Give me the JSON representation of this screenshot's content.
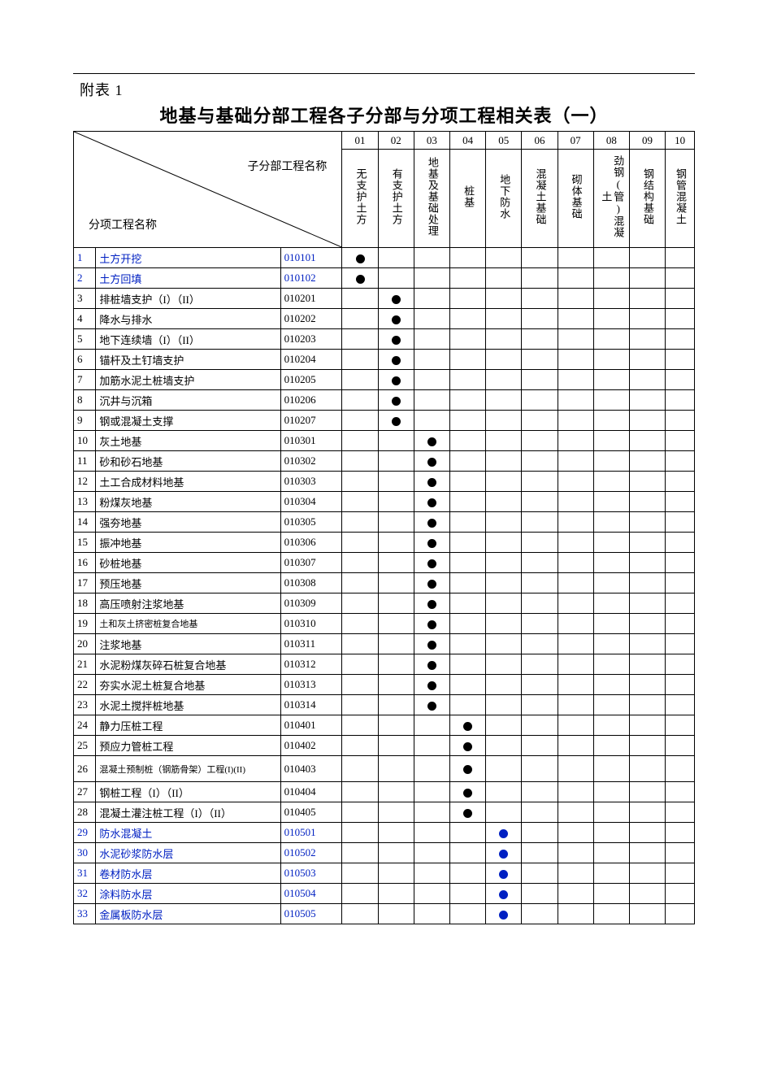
{
  "pre_title": "附表 1",
  "title": "地基与基础分部工程各子分部与分项工程相关表（一）",
  "diag_labels": {
    "top_right": "子分部工程名称",
    "bottom_left": "分项工程名称"
  },
  "columns": [
    {
      "num": "01",
      "label": "无支护土方"
    },
    {
      "num": "02",
      "label": "有支护土方"
    },
    {
      "num": "03",
      "label": "地基及基础处理"
    },
    {
      "num": "04",
      "label": "桩基"
    },
    {
      "num": "05",
      "label": "地下防水"
    },
    {
      "num": "06",
      "label": "混凝土基础"
    },
    {
      "num": "07",
      "label": "砌体基础"
    },
    {
      "num": "08",
      "label": "劲钢(管)混凝土"
    },
    {
      "num": "09",
      "label": "钢结构基础"
    },
    {
      "num": "10",
      "label": "钢管混凝土"
    }
  ],
  "rows": [
    {
      "idx": "1",
      "name": "土方开挖",
      "code": "010101",
      "mark_col": 0,
      "link": true,
      "dot": "black"
    },
    {
      "idx": "2",
      "name": "土方回填",
      "code": "010102",
      "mark_col": 0,
      "link": true,
      "dot": "black"
    },
    {
      "idx": "3",
      "name": "排桩墙支护（I）（II）",
      "code": "010201",
      "mark_col": 1,
      "link": false,
      "dot": "black"
    },
    {
      "idx": "4",
      "name": "降水与排水",
      "code": "010202",
      "mark_col": 1,
      "link": false,
      "dot": "black"
    },
    {
      "idx": "5",
      "name": "地下连续墙（I）（II）",
      "code": "010203",
      "mark_col": 1,
      "link": false,
      "dot": "black"
    },
    {
      "idx": "6",
      "name": "锚杆及土钉墙支护",
      "code": "010204",
      "mark_col": 1,
      "link": false,
      "dot": "black"
    },
    {
      "idx": "7",
      "name": "加筋水泥土桩墙支护",
      "code": "010205",
      "mark_col": 1,
      "link": false,
      "dot": "black"
    },
    {
      "idx": "8",
      "name": "沉井与沉箱",
      "code": "010206",
      "mark_col": 1,
      "link": false,
      "dot": "black"
    },
    {
      "idx": "9",
      "name": "钢或混凝土支撑",
      "code": "010207",
      "mark_col": 1,
      "link": false,
      "dot": "black"
    },
    {
      "idx": "10",
      "name": "灰土地基",
      "code": "010301",
      "mark_col": 2,
      "link": false,
      "dot": "black"
    },
    {
      "idx": "11",
      "name": "砂和砂石地基",
      "code": "010302",
      "mark_col": 2,
      "link": false,
      "dot": "black"
    },
    {
      "idx": "12",
      "name": "土工合成材料地基",
      "code": "010303",
      "mark_col": 2,
      "link": false,
      "dot": "black"
    },
    {
      "idx": "13",
      "name": "粉煤灰地基",
      "code": "010304",
      "mark_col": 2,
      "link": false,
      "dot": "black"
    },
    {
      "idx": "14",
      "name": "强夯地基",
      "code": "010305",
      "mark_col": 2,
      "link": false,
      "dot": "black"
    },
    {
      "idx": "15",
      "name": "振冲地基",
      "code": "010306",
      "mark_col": 2,
      "link": false,
      "dot": "black"
    },
    {
      "idx": "16",
      "name": "砂桩地基",
      "code": "010307",
      "mark_col": 2,
      "link": false,
      "dot": "black"
    },
    {
      "idx": "17",
      "name": "预压地基",
      "code": "010308",
      "mark_col": 2,
      "link": false,
      "dot": "black"
    },
    {
      "idx": "18",
      "name": "高压喷射注浆地基",
      "code": "010309",
      "mark_col": 2,
      "link": false,
      "dot": "black"
    },
    {
      "idx": "19",
      "name": "土和灰土挤密桩复合地基",
      "code": "010310",
      "mark_col": 2,
      "link": false,
      "dot": "black",
      "small": true
    },
    {
      "idx": "20",
      "name": "注浆地基",
      "code": "010311",
      "mark_col": 2,
      "link": false,
      "dot": "black"
    },
    {
      "idx": "21",
      "name": "水泥粉煤灰碎石桩复合地基",
      "code": "010312",
      "mark_col": 2,
      "link": false,
      "dot": "black"
    },
    {
      "idx": "22",
      "name": "夯实水泥土桩复合地基",
      "code": "010313",
      "mark_col": 2,
      "link": false,
      "dot": "black"
    },
    {
      "idx": "23",
      "name": "水泥土搅拌桩地基",
      "code": "010314",
      "mark_col": 2,
      "link": false,
      "dot": "black"
    },
    {
      "idx": "24",
      "name": "静力压桩工程",
      "code": "010401",
      "mark_col": 3,
      "link": false,
      "dot": "black"
    },
    {
      "idx": "25",
      "name": "预应力管桩工程",
      "code": "010402",
      "mark_col": 3,
      "link": false,
      "dot": "black"
    },
    {
      "idx": "26",
      "name": "混凝土预制桩（钢筋骨架）工程(I)(II)",
      "code": "010403",
      "mark_col": 3,
      "link": false,
      "dot": "black",
      "small": true,
      "tall": true
    },
    {
      "idx": "27",
      "name": "钢桩工程（I）（II）",
      "code": "010404",
      "mark_col": 3,
      "link": false,
      "dot": "black"
    },
    {
      "idx": "28",
      "name": "混凝土灌注桩工程（I）（II）",
      "code": "010405",
      "mark_col": 3,
      "link": false,
      "dot": "black"
    },
    {
      "idx": "29",
      "name": "防水混凝土",
      "code": "010501",
      "mark_col": 4,
      "link": true,
      "dot": "blue"
    },
    {
      "idx": "30",
      "name": "水泥砂浆防水层",
      "code": "010502",
      "mark_col": 4,
      "link": true,
      "dot": "blue"
    },
    {
      "idx": "31",
      "name": "卷材防水层",
      "code": "010503",
      "mark_col": 4,
      "link": true,
      "dot": "blue"
    },
    {
      "idx": "32",
      "name": "涂料防水层",
      "code": "010504",
      "mark_col": 4,
      "link": true,
      "dot": "blue"
    },
    {
      "idx": "33",
      "name": "金属板防水层",
      "code": "010505",
      "mark_col": 4,
      "link": true,
      "dot": "blue"
    }
  ],
  "colors": {
    "text": "#000000",
    "link": "#0020c2",
    "border": "#000000",
    "background": "#ffffff"
  }
}
